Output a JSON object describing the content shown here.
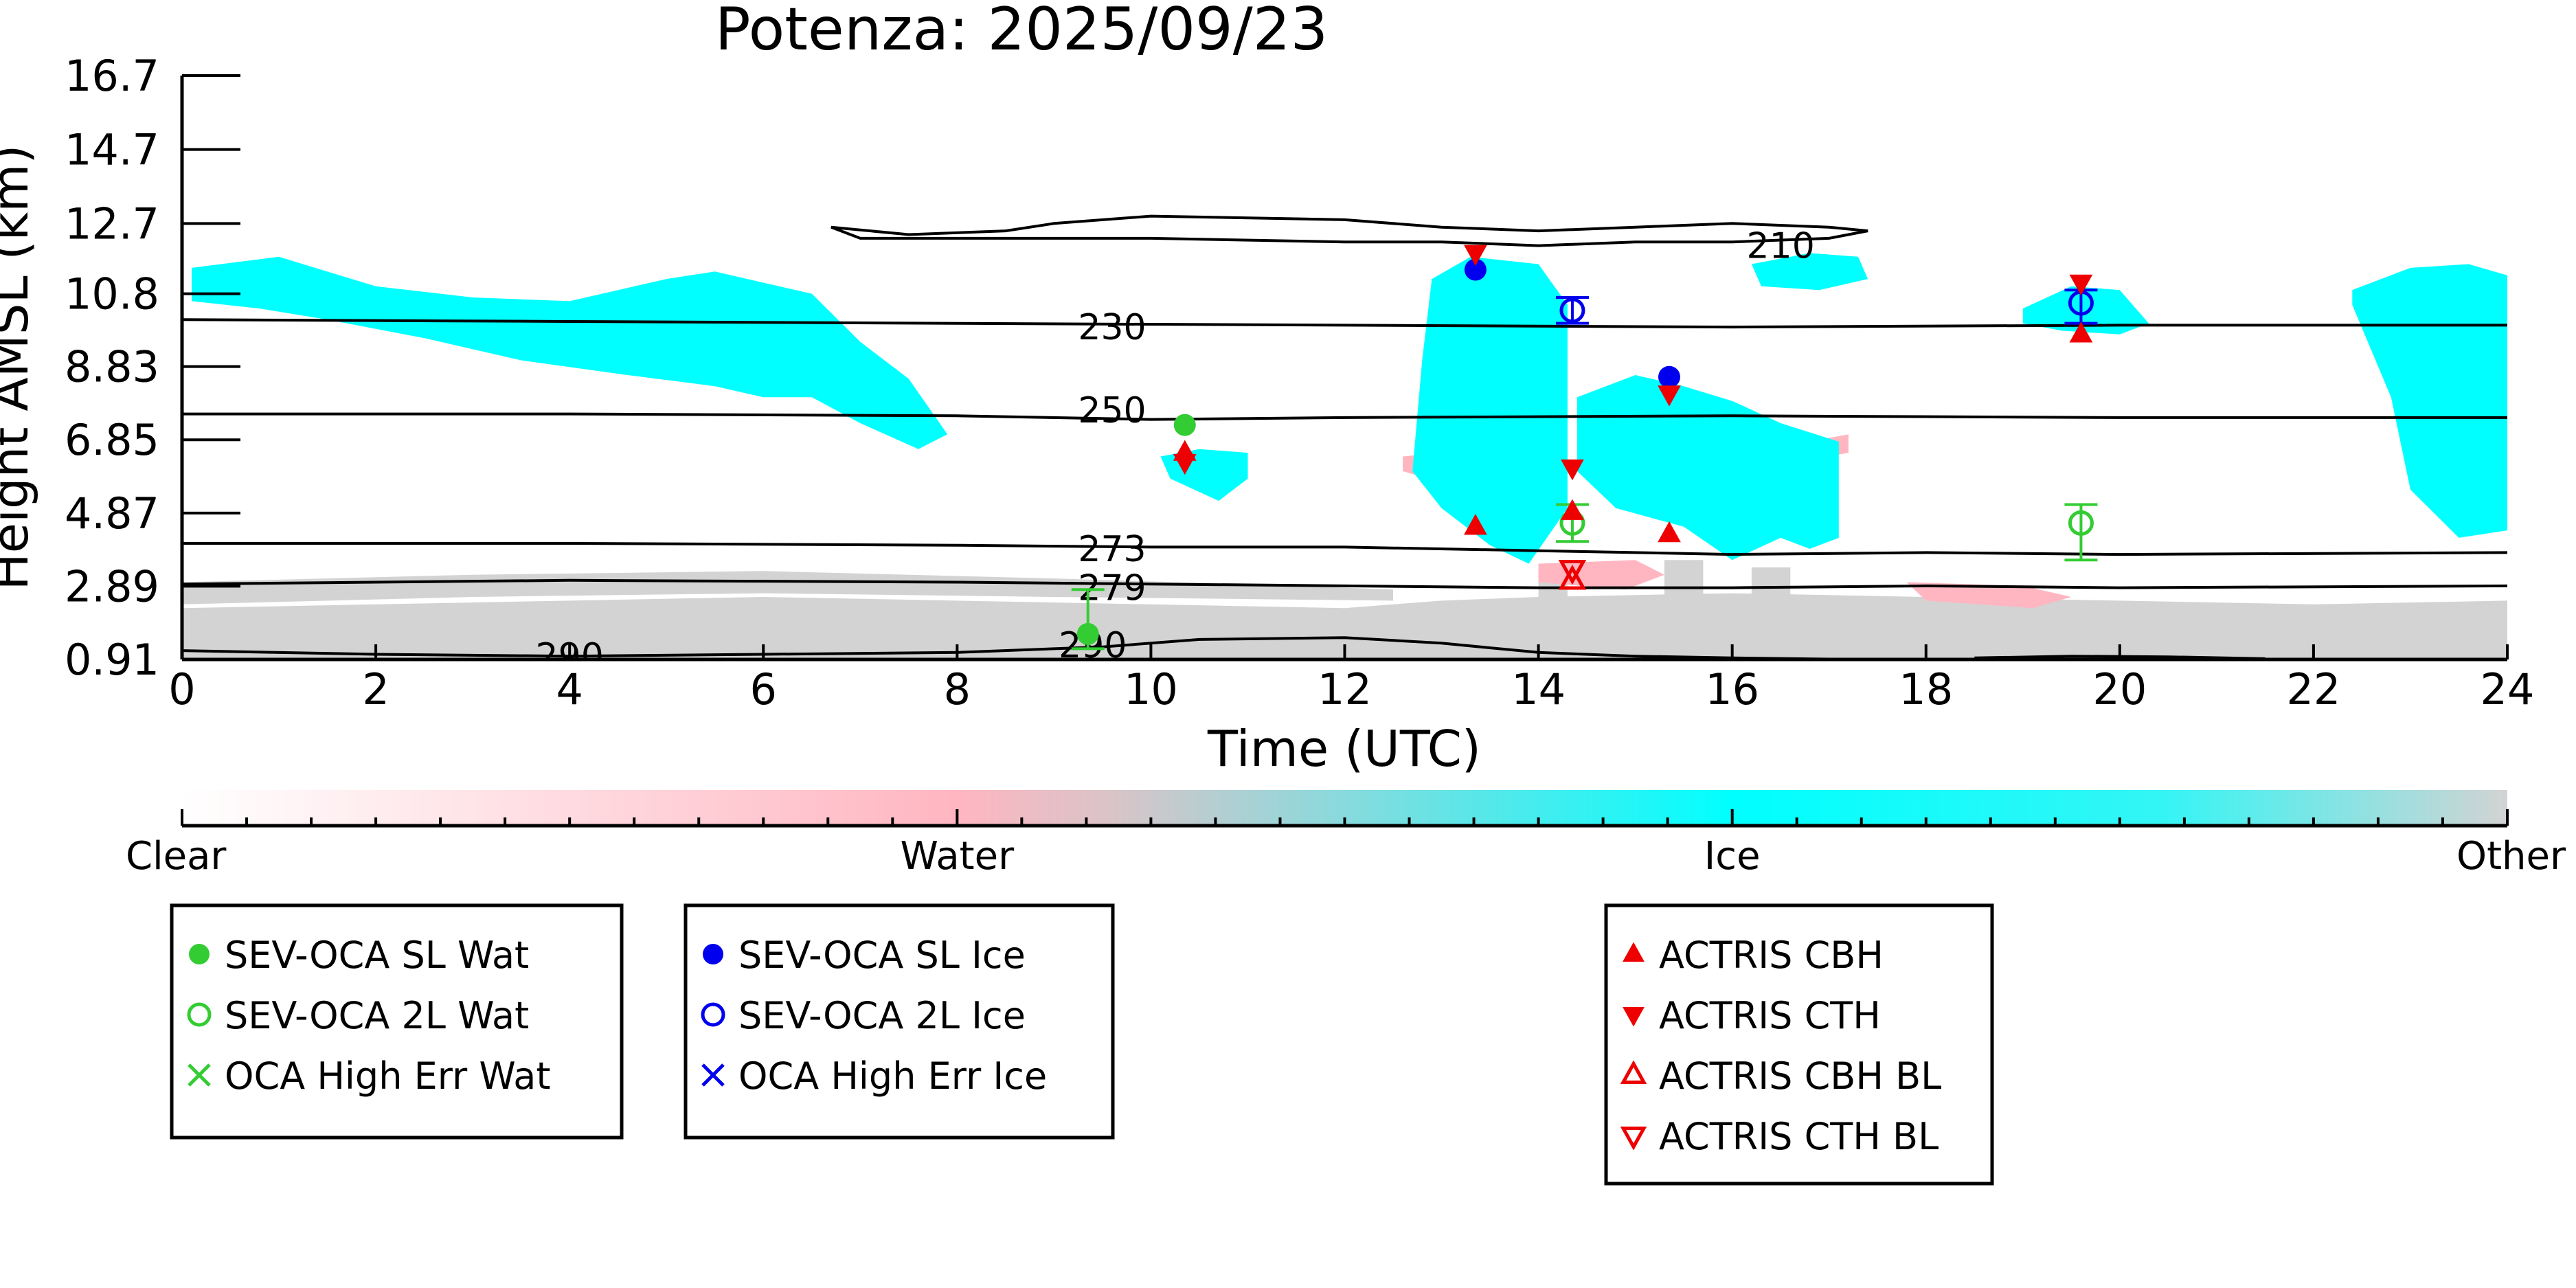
{
  "chart_data": {
    "type": "scatter",
    "title": "Potenza: 2025/09/23",
    "xlabel": "Time (UTC)",
    "ylabel": "Height AMSL (km)",
    "xlim": [
      0,
      24
    ],
    "ylim": [
      0.91,
      16.7
    ],
    "x_ticks": [
      0,
      2,
      4,
      6,
      8,
      10,
      12,
      14,
      16,
      18,
      20,
      22,
      24
    ],
    "y_ticks": [
      "0.91",
      "2.89",
      "4.87",
      "6.85",
      "8.83",
      "10.8",
      "12.7",
      "14.7",
      "16.7"
    ],
    "y_tick_values": [
      0.91,
      2.89,
      4.87,
      6.85,
      8.83,
      10.8,
      12.7,
      14.7,
      16.7
    ],
    "class_colors": {
      "clear": "#ffffff",
      "water": "#ffb6c1",
      "ice": "#00ffff",
      "other": "#d3d3d3"
    },
    "ice_regions": [
      {
        "x": [
          0.1,
          1.0,
          2.0,
          3.0,
          4.0,
          5.0,
          5.5,
          6.5,
          7.0,
          7.5,
          7.9,
          7.6,
          7.0,
          6.5,
          6.0,
          5.5,
          4.6,
          3.5,
          2.5,
          1.5,
          0.8,
          0.1
        ],
        "y": [
          11.5,
          11.8,
          11.0,
          10.7,
          10.6,
          11.2,
          11.4,
          10.8,
          9.5,
          8.5,
          7.0,
          6.6,
          7.3,
          8.0,
          8.0,
          8.3,
          8.6,
          9.0,
          9.6,
          10.1,
          10.4,
          10.6
        ]
      },
      {
        "x": [
          12.9,
          13.3,
          14.0,
          14.3,
          14.3,
          13.9,
          13.5,
          13.0,
          12.7,
          12.8,
          12.9
        ],
        "y": [
          11.2,
          11.8,
          11.6,
          10.5,
          5.0,
          3.5,
          4.0,
          5.0,
          6.0,
          9.0,
          11.2
        ]
      },
      {
        "x": [
          14.4,
          15.0,
          15.5,
          16.0,
          16.5,
          17.1,
          17.1,
          16.8,
          16.5,
          16.0,
          15.5,
          14.8,
          14.4
        ],
        "y": [
          8.0,
          8.6,
          8.3,
          7.9,
          7.3,
          6.8,
          4.2,
          3.9,
          4.2,
          3.6,
          4.5,
          5.0,
          6.0
        ]
      },
      {
        "x": [
          16.2,
          16.8,
          17.3,
          17.4,
          16.9,
          16.3
        ],
        "y": [
          11.6,
          11.9,
          11.8,
          11.2,
          10.9,
          11.0
        ]
      },
      {
        "x": [
          19.0,
          19.5,
          20.0,
          20.3,
          20.0,
          19.4,
          19.0
        ],
        "y": [
          10.4,
          11.0,
          10.9,
          10.0,
          9.7,
          9.8,
          10.0
        ]
      },
      {
        "x": [
          22.4,
          23.0,
          23.6,
          24.0,
          24.0,
          23.5,
          23.0,
          22.8,
          22.4
        ],
        "y": [
          10.9,
          11.5,
          11.6,
          11.3,
          4.4,
          4.2,
          5.5,
          8.0,
          10.5
        ]
      },
      {
        "x": [
          10.1,
          10.5,
          11.0,
          11.0,
          10.7,
          10.2
        ],
        "y": [
          6.4,
          6.6,
          6.5,
          5.8,
          5.2,
          5.8
        ]
      }
    ],
    "water_regions": [
      {
        "x": [
          12.6,
          13.0,
          13.2,
          13.0,
          12.6
        ],
        "y": [
          6.4,
          6.5,
          6.0,
          5.7,
          6.0
        ]
      },
      {
        "x": [
          14.0,
          15.0,
          15.3,
          14.9,
          14.0
        ],
        "y": [
          3.5,
          3.6,
          3.2,
          2.8,
          3.0
        ]
      },
      {
        "x": [
          17.8,
          19.0,
          19.5,
          19.1,
          18.0
        ],
        "y": [
          3.0,
          2.9,
          2.6,
          2.3,
          2.5
        ]
      },
      {
        "x": [
          16.8,
          17.2,
          17.2,
          16.8
        ],
        "y": [
          6.8,
          7.0,
          6.5,
          6.3
        ]
      }
    ],
    "other_regions": [
      {
        "x": [
          0,
          2,
          4,
          6,
          8,
          10,
          12,
          13,
          14,
          16,
          18,
          20,
          22,
          24,
          24,
          0
        ],
        "y": [
          2.3,
          2.4,
          2.5,
          2.6,
          2.5,
          2.4,
          2.3,
          2.5,
          2.6,
          2.7,
          2.6,
          2.5,
          2.4,
          2.5,
          0.91,
          0.91
        ]
      },
      {
        "x": [
          0,
          3,
          6,
          9,
          11.5,
          12.5,
          12.5,
          9,
          6,
          3,
          0
        ],
        "y": [
          3.0,
          3.2,
          3.3,
          3.1,
          2.9,
          2.8,
          2.5,
          2.6,
          2.7,
          2.6,
          2.4
        ]
      },
      {
        "x": [
          14.0,
          14.3,
          14.3,
          14.0
        ],
        "y": [
          3.5,
          3.5,
          2.5,
          2.5
        ]
      },
      {
        "x": [
          15.3,
          15.7,
          15.7,
          15.3
        ],
        "y": [
          3.6,
          3.6,
          2.5,
          2.5
        ]
      },
      {
        "x": [
          16.2,
          16.6,
          16.6,
          16.2
        ],
        "y": [
          3.4,
          3.4,
          2.5,
          2.5
        ]
      }
    ],
    "temperature_contours": [
      {
        "label": "210",
        "label_x": 16.5,
        "label_y": 12.1,
        "closed": true,
        "x": [
          6.7,
          7.5,
          8.5,
          9.0,
          10.0,
          12.0,
          13.0,
          14.0,
          15.0,
          16.0,
          17.0,
          17.4,
          17.0,
          16.0,
          15.0,
          14.0,
          13.0,
          12.0,
          10.0,
          9.0,
          8.0,
          7.0,
          6.7
        ],
        "y": [
          12.6,
          12.4,
          12.5,
          12.7,
          12.9,
          12.8,
          12.6,
          12.5,
          12.6,
          12.7,
          12.6,
          12.5,
          12.3,
          12.2,
          12.2,
          12.1,
          12.2,
          12.2,
          12.3,
          12.3,
          12.3,
          12.3,
          12.6
        ]
      },
      {
        "label": "230",
        "label_x": 9.6,
        "label_y": 9.9,
        "closed": false,
        "x": [
          0,
          4,
          8,
          12,
          16,
          20,
          24
        ],
        "y": [
          10.1,
          10.05,
          10.0,
          9.95,
          9.9,
          9.95,
          9.95
        ]
      },
      {
        "label": "250",
        "label_x": 9.6,
        "label_y": 7.65,
        "closed": false,
        "x": [
          0,
          4,
          8,
          10,
          12,
          16,
          20,
          24
        ],
        "y": [
          7.55,
          7.55,
          7.5,
          7.4,
          7.45,
          7.5,
          7.45,
          7.45
        ]
      },
      {
        "label": "273",
        "label_x": 9.6,
        "label_y": 3.9,
        "closed": false,
        "x": [
          0,
          4,
          8,
          10,
          12,
          14,
          16,
          18,
          20,
          24
        ],
        "y": [
          4.05,
          4.05,
          4.0,
          3.95,
          3.95,
          3.85,
          3.75,
          3.8,
          3.75,
          3.8
        ]
      },
      {
        "label": "279",
        "label_x": 9.6,
        "label_y": 2.85,
        "closed": false,
        "x": [
          0,
          4,
          8,
          10,
          12,
          14,
          16,
          18,
          20,
          24
        ],
        "y": [
          2.95,
          3.05,
          3.0,
          2.95,
          2.9,
          2.85,
          2.85,
          2.9,
          2.85,
          2.9
        ]
      },
      {
        "label": "290",
        "label_x": 9.4,
        "label_y": 1.3,
        "closed": false,
        "x": [
          0,
          2,
          4,
          6,
          8,
          9.5,
          10.5,
          12,
          13,
          14,
          15,
          16,
          17
        ],
        "y": [
          1.15,
          1.05,
          1.0,
          1.05,
          1.1,
          1.25,
          1.45,
          1.5,
          1.35,
          1.1,
          1.0,
          0.95,
          0.92
        ]
      },
      {
        "label": "290",
        "label_x": 4.0,
        "label_y": 1.0,
        "closed": false,
        "x": [
          18.5,
          19.5,
          20.5,
          21.5
        ],
        "y": [
          0.95,
          1.0,
          0.98,
          0.93
        ]
      }
    ],
    "series": [
      {
        "name": "SEV-OCA SL Wat",
        "marker": "filled-circle",
        "color": "#33cc33",
        "points": [
          {
            "x": 10.35,
            "y": 7.25
          },
          {
            "x": 9.35,
            "y": 1.6,
            "err_low": 1.2,
            "err_high": 2.8
          }
        ]
      },
      {
        "name": "SEV-OCA 2L Wat",
        "marker": "open-circle",
        "color": "#33cc33",
        "points": [
          {
            "x": 14.35,
            "y": 4.6,
            "err_low": 4.1,
            "err_high": 5.1
          },
          {
            "x": 19.6,
            "y": 4.6,
            "err_low": 3.6,
            "err_high": 5.1
          }
        ]
      },
      {
        "name": "OCA High Err Wat",
        "marker": "x",
        "color": "#33cc33",
        "points": []
      },
      {
        "name": "SEV-OCA SL Ice",
        "marker": "filled-circle",
        "color": "#0000ee",
        "points": [
          {
            "x": 13.35,
            "y": 11.45
          },
          {
            "x": 15.35,
            "y": 8.55
          }
        ]
      },
      {
        "name": "SEV-OCA 2L Ice",
        "marker": "open-circle",
        "color": "#0000ee",
        "points": [
          {
            "x": 14.35,
            "y": 10.35,
            "err_low": 10.0,
            "err_high": 10.7
          },
          {
            "x": 19.6,
            "y": 10.55,
            "err_low": 10.0,
            "err_high": 10.9
          }
        ]
      },
      {
        "name": "OCA High Err Ice",
        "marker": "x",
        "color": "#0000ee",
        "points": []
      },
      {
        "name": "ACTRIS CBH",
        "marker": "filled-triangle-up",
        "color": "#ee0000",
        "points": [
          {
            "x": 10.35,
            "y": 6.5
          },
          {
            "x": 13.35,
            "y": 4.5
          },
          {
            "x": 14.35,
            "y": 4.9
          },
          {
            "x": 15.35,
            "y": 4.3
          },
          {
            "x": 19.6,
            "y": 9.7
          }
        ]
      },
      {
        "name": "ACTRIS CTH",
        "marker": "filled-triangle-down",
        "color": "#ee0000",
        "points": [
          {
            "x": 10.35,
            "y": 6.25
          },
          {
            "x": 13.35,
            "y": 11.9
          },
          {
            "x": 14.35,
            "y": 6.1
          },
          {
            "x": 15.35,
            "y": 8.1
          },
          {
            "x": 19.6,
            "y": 11.1
          }
        ]
      },
      {
        "name": "ACTRIS CBH BL",
        "marker": "open-triangle-up",
        "color": "#ee0000",
        "points": [
          {
            "x": 14.35,
            "y": 3.05
          }
        ]
      },
      {
        "name": "ACTRIS CTH BL",
        "marker": "open-triangle-down",
        "color": "#ee0000",
        "points": [
          {
            "x": 14.35,
            "y": 3.35
          }
        ]
      }
    ],
    "colorbar": {
      "labels": [
        "Clear",
        "Water",
        "Ice",
        "Other"
      ],
      "stops": [
        "#ffffff",
        "#ffb6c1",
        "#00ffff",
        "#d3d3d3"
      ]
    },
    "legend_groups": [
      {
        "entries": [
          0,
          1,
          2
        ]
      },
      {
        "entries": [
          3,
          4,
          5
        ]
      },
      {
        "entries": [
          6,
          7,
          8,
          9
        ]
      }
    ]
  }
}
